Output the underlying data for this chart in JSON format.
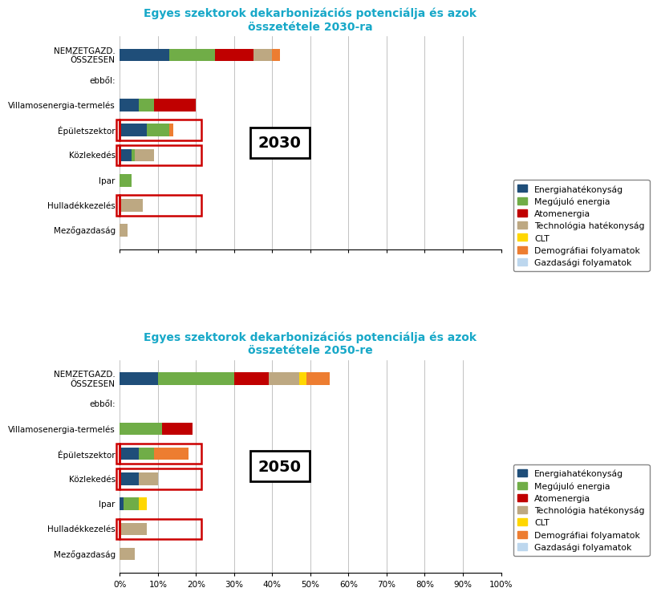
{
  "title_2030": "Egyes szektorok dekarbonizációs potenciálja és azok\nösszetétele 2030-ra",
  "title_2050": "Egyes szektorok dekarbonizációs potenciálja és azok\nösszetétele 2050-re",
  "categories": [
    "NEMZETGAZD.\nÖSSZESEN",
    "ebből:",
    "Villamosenergia-termelés",
    "Épületszektor",
    "Közlekedés",
    "Ipar",
    "Hulladékkezelés",
    "Mezőgazdaság"
  ],
  "legend_labels": [
    "Energiahatékonyság",
    "Megújuló energia",
    "Atomenergia",
    "Technológia hatékonyság",
    "CLT",
    "Demográfiai folyamatok",
    "Gazdasági folyamatok"
  ],
  "colors": [
    "#1F4E79",
    "#70AD47",
    "#C00000",
    "#BDA882",
    "#FFD700",
    "#ED7D31",
    "#BDD7EE"
  ],
  "data_2030": [
    [
      13,
      12,
      10,
      5,
      0,
      2,
      0
    ],
    [
      0,
      0,
      0,
      0,
      0,
      0,
      0
    ],
    [
      5,
      4,
      11,
      0,
      0,
      0,
      0
    ],
    [
      7,
      6,
      0,
      0,
      0,
      1,
      0
    ],
    [
      3,
      1,
      0,
      5,
      0,
      0,
      0
    ],
    [
      0,
      3,
      0,
      0,
      0,
      0,
      0
    ],
    [
      0,
      0,
      0,
      6,
      0,
      0,
      0
    ],
    [
      0,
      0,
      0,
      2,
      0,
      0,
      0
    ]
  ],
  "data_2050": [
    [
      10,
      20,
      9,
      8,
      2,
      6,
      0
    ],
    [
      0,
      0,
      0,
      0,
      0,
      0,
      0
    ],
    [
      0,
      11,
      8,
      0,
      0,
      0,
      0
    ],
    [
      5,
      4,
      0,
      0,
      0,
      9,
      0
    ],
    [
      5,
      0,
      0,
      5,
      0,
      0,
      0
    ],
    [
      1,
      4,
      0,
      0,
      2,
      0,
      0
    ],
    [
      0,
      0,
      0,
      7,
      0,
      0,
      0
    ],
    [
      0,
      0,
      0,
      4,
      0,
      0,
      0
    ]
  ],
  "xticks": [
    0,
    10,
    20,
    30,
    40,
    50,
    60,
    70,
    80,
    90,
    100
  ],
  "xticklabels": [
    "0%",
    "10%",
    "20%",
    "30%",
    "40%",
    "50%",
    "60%",
    "70%",
    "80%",
    "90%",
    "100%"
  ],
  "year_label_2030": "2030",
  "year_label_2050": "2050",
  "boxed_rows": [
    3,
    4,
    6
  ],
  "title_color": "#17A8C8",
  "background_color": "#FFFFFF"
}
